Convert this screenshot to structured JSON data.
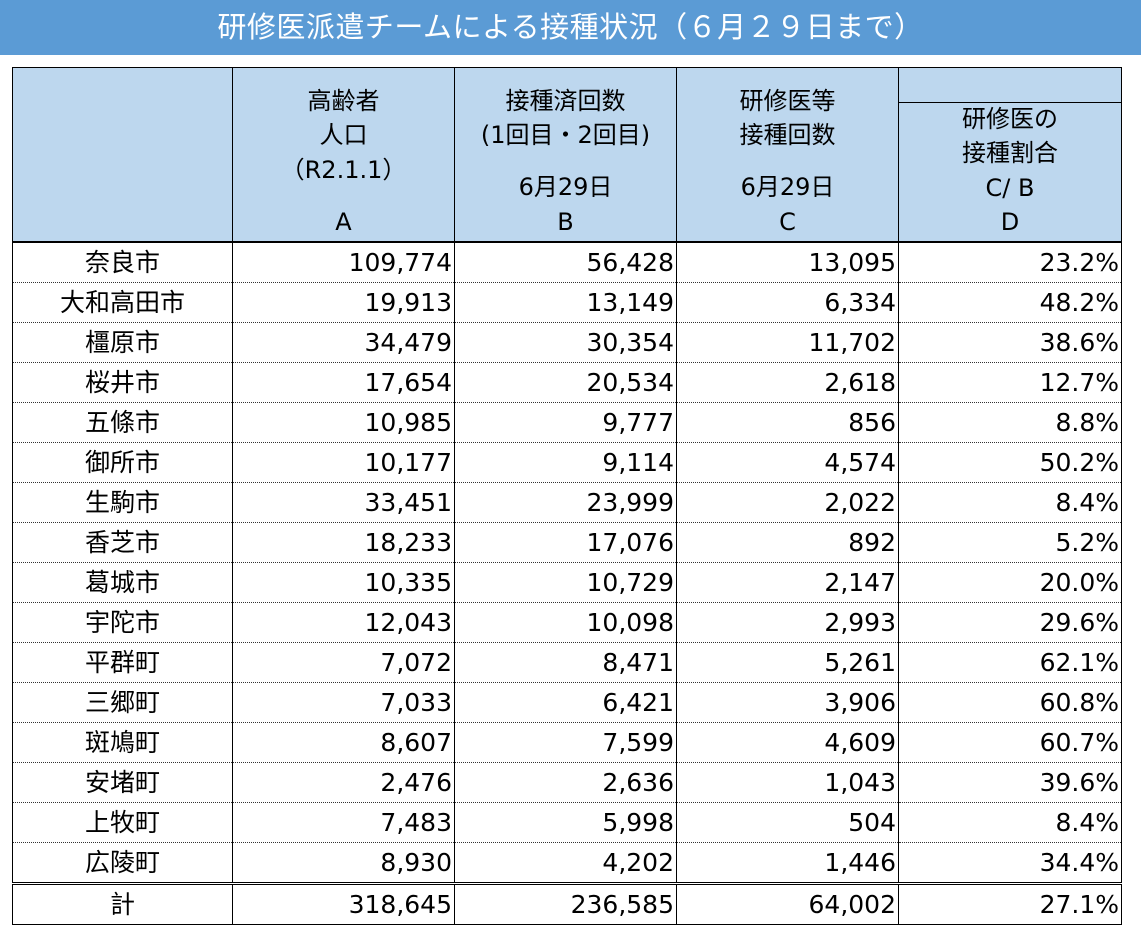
{
  "title": "研修医派遣チームによる接種状況（６月２９日まで）",
  "colors": {
    "banner": "#5b9bd5",
    "header_fill": "#bdd7ee"
  },
  "header": {
    "col_a": {
      "line1": "高齢者",
      "line2": "人口",
      "line3": "（R2.1.1）",
      "letter": "A"
    },
    "col_b": {
      "line1": "接種済回数",
      "line2": "(1回目・2回目)",
      "date": "6月29日",
      "letter": "B"
    },
    "col_c": {
      "line1": "研修医等",
      "line2": "接種回数",
      "date": "6月29日",
      "letter": "C"
    },
    "col_d": {
      "line1": "研修医の",
      "line2": "接種割合",
      "formula": "C/ B",
      "letter": "D"
    }
  },
  "rows": [
    {
      "name": "奈良市",
      "a": "109,774",
      "b": "56,428",
      "c": "13,095",
      "d": "23.2%"
    },
    {
      "name": "大和高田市",
      "a": "19,913",
      "b": "13,149",
      "c": "6,334",
      "d": "48.2%"
    },
    {
      "name": "橿原市",
      "a": "34,479",
      "b": "30,354",
      "c": "11,702",
      "d": "38.6%"
    },
    {
      "name": "桜井市",
      "a": "17,654",
      "b": "20,534",
      "c": "2,618",
      "d": "12.7%"
    },
    {
      "name": "五條市",
      "a": "10,985",
      "b": "9,777",
      "c": "856",
      "d": "8.8%"
    },
    {
      "name": "御所市",
      "a": "10,177",
      "b": "9,114",
      "c": "4,574",
      "d": "50.2%"
    },
    {
      "name": "生駒市",
      "a": "33,451",
      "b": "23,999",
      "c": "2,022",
      "d": "8.4%"
    },
    {
      "name": "香芝市",
      "a": "18,233",
      "b": "17,076",
      "c": "892",
      "d": "5.2%"
    },
    {
      "name": "葛城市",
      "a": "10,335",
      "b": "10,729",
      "c": "2,147",
      "d": "20.0%"
    },
    {
      "name": "宇陀市",
      "a": "12,043",
      "b": "10,098",
      "c": "2,993",
      "d": "29.6%"
    },
    {
      "name": "平群町",
      "a": "7,072",
      "b": "8,471",
      "c": "5,261",
      "d": "62.1%"
    },
    {
      "name": "三郷町",
      "a": "7,033",
      "b": "6,421",
      "c": "3,906",
      "d": "60.8%"
    },
    {
      "name": "斑鳩町",
      "a": "8,607",
      "b": "7,599",
      "c": "4,609",
      "d": "60.7%"
    },
    {
      "name": "安堵町",
      "a": "2,476",
      "b": "2,636",
      "c": "1,043",
      "d": "39.6%"
    },
    {
      "name": "上牧町",
      "a": "7,483",
      "b": "5,998",
      "c": "504",
      "d": "8.4%"
    },
    {
      "name": "広陵町",
      "a": "8,930",
      "b": "4,202",
      "c": "1,446",
      "d": "34.4%"
    }
  ],
  "total": {
    "name": "計",
    "a": "318,645",
    "b": "236,585",
    "c": "64,002",
    "d": "27.1%"
  }
}
